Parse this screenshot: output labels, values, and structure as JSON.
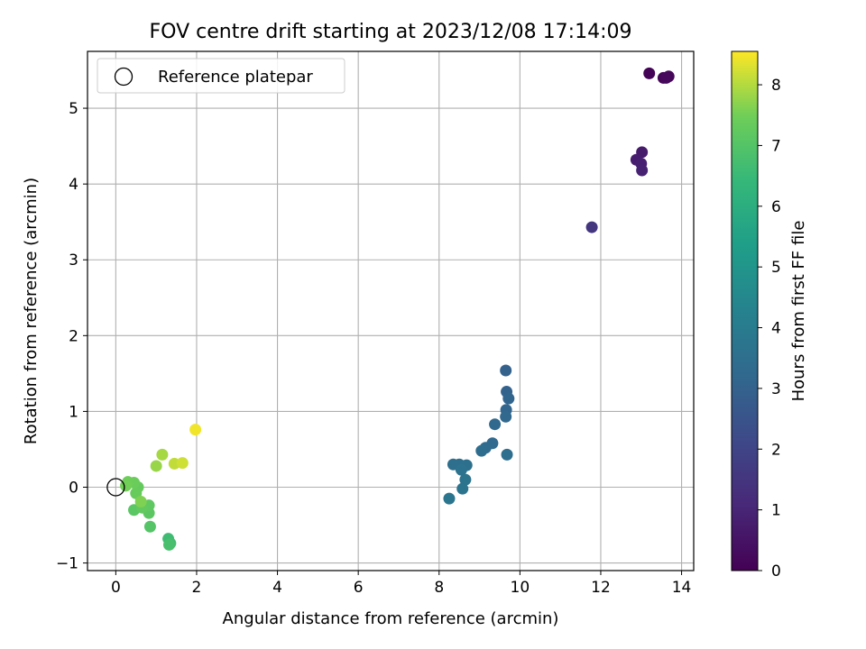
{
  "chart_data": {
    "type": "scatter",
    "title": "FOV centre drift starting at 2023/12/08 17:14:09",
    "xlabel": "Angular distance from reference (arcmin)",
    "ylabel": "Rotation from reference (arcmin)",
    "xlim": [
      -0.7,
      14.3
    ],
    "ylim": [
      -1.1,
      5.75
    ],
    "xticks": [
      0,
      2,
      4,
      6,
      8,
      10,
      12,
      14
    ],
    "yticks": [
      -1,
      0,
      1,
      2,
      3,
      4,
      5
    ],
    "grid": true,
    "legend": {
      "position": "top-left",
      "entries": [
        "Reference platepar"
      ]
    },
    "reference_point": {
      "label": "Reference platepar",
      "x": 0,
      "y": 0
    },
    "colorbar": {
      "label": "Hours from first FF file",
      "colormap": "viridis",
      "range": [
        0,
        8.55
      ],
      "ticks": [
        0,
        1,
        2,
        3,
        4,
        5,
        6,
        7,
        8
      ]
    },
    "points": [
      {
        "x": 13.2,
        "y": 5.46,
        "c": 0.05
      },
      {
        "x": 13.55,
        "y": 5.4,
        "c": 0.1
      },
      {
        "x": 13.68,
        "y": 5.42,
        "c": 0.15
      },
      {
        "x": 13.62,
        "y": 5.4,
        "c": 0.2
      },
      {
        "x": 13.02,
        "y": 4.42,
        "c": 0.7
      },
      {
        "x": 12.88,
        "y": 4.32,
        "c": 0.8
      },
      {
        "x": 13.0,
        "y": 4.27,
        "c": 0.85
      },
      {
        "x": 13.02,
        "y": 4.18,
        "c": 0.9
      },
      {
        "x": 11.78,
        "y": 3.43,
        "c": 1.5
      },
      {
        "x": 9.65,
        "y": 1.54,
        "c": 3.0
      },
      {
        "x": 9.67,
        "y": 1.26,
        "c": 3.05
      },
      {
        "x": 9.72,
        "y": 1.17,
        "c": 3.1
      },
      {
        "x": 9.66,
        "y": 1.02,
        "c": 3.15
      },
      {
        "x": 9.65,
        "y": 0.93,
        "c": 3.2
      },
      {
        "x": 9.38,
        "y": 0.83,
        "c": 3.25
      },
      {
        "x": 9.32,
        "y": 0.58,
        "c": 3.3
      },
      {
        "x": 9.15,
        "y": 0.52,
        "c": 3.35
      },
      {
        "x": 9.05,
        "y": 0.48,
        "c": 3.4
      },
      {
        "x": 9.68,
        "y": 0.43,
        "c": 3.45
      },
      {
        "x": 8.35,
        "y": 0.3,
        "c": 3.5
      },
      {
        "x": 8.5,
        "y": 0.3,
        "c": 3.5
      },
      {
        "x": 8.68,
        "y": 0.29,
        "c": 3.55
      },
      {
        "x": 8.55,
        "y": 0.23,
        "c": 3.6
      },
      {
        "x": 8.65,
        "y": 0.1,
        "c": 3.65
      },
      {
        "x": 8.58,
        "y": -0.02,
        "c": 3.7
      },
      {
        "x": 8.25,
        "y": -0.15,
        "c": 3.75
      },
      {
        "x": 1.3,
        "y": -0.68,
        "c": 6.6
      },
      {
        "x": 1.35,
        "y": -0.74,
        "c": 6.7
      },
      {
        "x": 1.32,
        "y": -0.76,
        "c": 6.8
      },
      {
        "x": 0.85,
        "y": -0.52,
        "c": 7.0
      },
      {
        "x": 0.45,
        "y": -0.3,
        "c": 7.1
      },
      {
        "x": 0.82,
        "y": -0.34,
        "c": 7.15
      },
      {
        "x": 0.82,
        "y": -0.24,
        "c": 7.2
      },
      {
        "x": 0.65,
        "y": -0.27,
        "c": 7.25
      },
      {
        "x": 0.55,
        "y": 0.0,
        "c": 7.3
      },
      {
        "x": 0.5,
        "y": -0.08,
        "c": 7.35
      },
      {
        "x": 0.45,
        "y": 0.06,
        "c": 7.4
      },
      {
        "x": 0.3,
        "y": 0.07,
        "c": 7.45
      },
      {
        "x": 0.25,
        "y": 0.02,
        "c": 7.5
      },
      {
        "x": 0.62,
        "y": -0.19,
        "c": 7.6
      },
      {
        "x": 1.0,
        "y": 0.28,
        "c": 7.8
      },
      {
        "x": 1.15,
        "y": 0.43,
        "c": 7.9
      },
      {
        "x": 1.45,
        "y": 0.31,
        "c": 8.1
      },
      {
        "x": 1.65,
        "y": 0.32,
        "c": 8.2
      },
      {
        "x": 1.97,
        "y": 0.76,
        "c": 8.45
      }
    ]
  }
}
